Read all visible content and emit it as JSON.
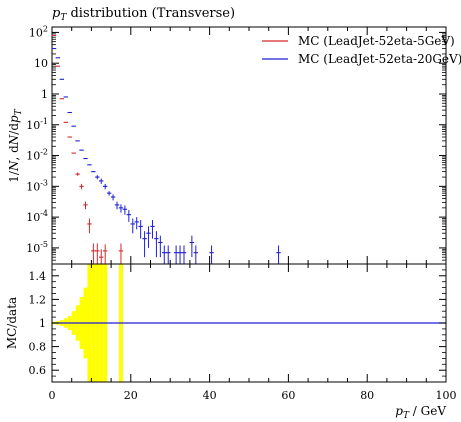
{
  "chart_data": [
    {
      "type": "scatter",
      "title": "p_T distribution (Transverse)",
      "ylabel": "1/N dN/dp_T",
      "xlim": [
        0,
        100
      ],
      "ylim": [
        3e-06,
        150
      ],
      "yscale": "log",
      "ytick_labels": [
        "10^{-5}",
        "10^{-4}",
        "10^{-3}",
        "10^{-2}",
        "10^{-1}",
        "1",
        "10",
        "10^{2}"
      ],
      "legend_position": "top-right",
      "series": [
        {
          "name": "MC (LeadJet-52eta-5GeV)",
          "color": "#d62728",
          "points": [
            {
              "x": 0.5,
              "y": 80,
              "err": 0
            },
            {
              "x": 1.5,
              "y": 8,
              "err": 0
            },
            {
              "x": 2.5,
              "y": 0.7,
              "err": 0
            },
            {
              "x": 3.5,
              "y": 0.12,
              "err": 0
            },
            {
              "x": 4.5,
              "y": 0.04,
              "err": 0
            },
            {
              "x": 5.5,
              "y": 0.012,
              "err": 0
            },
            {
              "x": 6.5,
              "y": 0.0025,
              "err": 0.0003
            },
            {
              "x": 7.5,
              "y": 0.001,
              "err": 0.0002
            },
            {
              "x": 8.5,
              "y": 0.00025,
              "err": 7e-05
            },
            {
              "x": 9.5,
              "y": 6e-05,
              "err": 3e-05
            },
            {
              "x": 10.5,
              "y": 8e-06,
              "err": 6e-06
            },
            {
              "x": 11.5,
              "y": 8e-06,
              "err": 6e-06
            },
            {
              "x": 12.5,
              "y": 5e-06,
              "err": 4e-06
            },
            {
              "x": 13.5,
              "y": 8e-06,
              "err": 5e-06
            },
            {
              "x": 17.5,
              "y": 8e-06,
              "err": 6e-06
            }
          ]
        },
        {
          "name": "MC (LeadJet-52eta-20GeV)",
          "color": "#1f1fd6",
          "points": [
            {
              "x": 0.5,
              "y": 30,
              "err": 0
            },
            {
              "x": 1.5,
              "y": 15,
              "err": 0
            },
            {
              "x": 2.5,
              "y": 3,
              "err": 0
            },
            {
              "x": 3.5,
              "y": 0.8,
              "err": 0
            },
            {
              "x": 4.5,
              "y": 0.25,
              "err": 0
            },
            {
              "x": 5.5,
              "y": 0.09,
              "err": 0
            },
            {
              "x": 6.5,
              "y": 0.03,
              "err": 0
            },
            {
              "x": 7.5,
              "y": 0.015,
              "err": 0
            },
            {
              "x": 8.5,
              "y": 0.008,
              "err": 0
            },
            {
              "x": 9.5,
              "y": 0.005,
              "err": 0
            },
            {
              "x": 10.5,
              "y": 0.003,
              "err": 0
            },
            {
              "x": 11.5,
              "y": 0.002,
              "err": 0.0003
            },
            {
              "x": 12.5,
              "y": 0.0015,
              "err": 0.0003
            },
            {
              "x": 13.5,
              "y": 0.001,
              "err": 0.0002
            },
            {
              "x": 14.5,
              "y": 0.0006,
              "err": 0.0001
            },
            {
              "x": 15.5,
              "y": 0.00045,
              "err": 0.0001
            },
            {
              "x": 16.5,
              "y": 0.00025,
              "err": 7e-05
            },
            {
              "x": 17.5,
              "y": 0.0002,
              "err": 6e-05
            },
            {
              "x": 18.5,
              "y": 0.00018,
              "err": 6e-05
            },
            {
              "x": 19.5,
              "y": 0.00012,
              "err": 5e-05
            },
            {
              "x": 20.5,
              "y": 6e-05,
              "err": 3e-05
            },
            {
              "x": 21.5,
              "y": 7e-05,
              "err": 3e-05
            },
            {
              "x": 22.5,
              "y": 5e-05,
              "err": 3e-05
            },
            {
              "x": 23.5,
              "y": 2e-05,
              "err": 1.5e-05
            },
            {
              "x": 24.5,
              "y": 3e-05,
              "err": 2e-05
            },
            {
              "x": 25.5,
              "y": 5e-05,
              "err": 3e-05
            },
            {
              "x": 26.5,
              "y": 2e-05,
              "err": 1.5e-05
            },
            {
              "x": 27.5,
              "y": 1.5e-05,
              "err": 1e-05
            },
            {
              "x": 28.5,
              "y": 7e-06,
              "err": 5e-06
            },
            {
              "x": 29.5,
              "y": 7e-06,
              "err": 5e-06
            },
            {
              "x": 31.5,
              "y": 7e-06,
              "err": 5e-06
            },
            {
              "x": 32.5,
              "y": 7e-06,
              "err": 5e-06
            },
            {
              "x": 33.5,
              "y": 7e-06,
              "err": 5e-06
            },
            {
              "x": 35.5,
              "y": 1.5e-05,
              "err": 1e-05
            },
            {
              "x": 36.5,
              "y": 7e-06,
              "err": 5e-06
            },
            {
              "x": 40.5,
              "y": 7e-06,
              "err": 5e-06
            },
            {
              "x": 57.5,
              "y": 7e-06,
              "err": 5e-06
            }
          ]
        }
      ]
    },
    {
      "type": "area",
      "ylabel": "MC/data",
      "xlabel": "p_T / GeV",
      "xlim": [
        0,
        100
      ],
      "ylim": [
        0.5,
        1.5
      ],
      "xticks": [
        0,
        20,
        40,
        60,
        80,
        100
      ],
      "yticks": [
        0.6,
        0.8,
        1,
        1.2,
        1.4
      ],
      "reference_line": 1,
      "reference_color": "#1f1fd6",
      "band_color": "#ffff00",
      "band": [
        {
          "x0": 0,
          "x1": 1,
          "lo": 0.99,
          "hi": 1.01
        },
        {
          "x0": 1,
          "x1": 2,
          "lo": 0.985,
          "hi": 1.015
        },
        {
          "x0": 2,
          "x1": 3,
          "lo": 0.975,
          "hi": 1.025
        },
        {
          "x0": 3,
          "x1": 4,
          "lo": 0.96,
          "hi": 1.04
        },
        {
          "x0": 4,
          "x1": 5,
          "lo": 0.94,
          "hi": 1.06
        },
        {
          "x0": 5,
          "x1": 6,
          "lo": 0.9,
          "hi": 1.1
        },
        {
          "x0": 6,
          "x1": 7,
          "lo": 0.85,
          "hi": 1.15
        },
        {
          "x0": 7,
          "x1": 8,
          "lo": 0.78,
          "hi": 1.22
        },
        {
          "x0": 8,
          "x1": 9,
          "lo": 0.7,
          "hi": 1.3
        },
        {
          "x0": 9,
          "x1": 10,
          "lo": 0.5,
          "hi": 1.5
        },
        {
          "x0": 10,
          "x1": 11,
          "lo": 0.5,
          "hi": 1.5
        },
        {
          "x0": 11,
          "x1": 12,
          "lo": 0.5,
          "hi": 1.5
        },
        {
          "x0": 12,
          "x1": 13,
          "lo": 0.5,
          "hi": 1.5
        },
        {
          "x0": 13,
          "x1": 14,
          "lo": 0.5,
          "hi": 1.5
        },
        {
          "x0": 17,
          "x1": 18,
          "lo": 0.5,
          "hi": 1.5
        }
      ]
    }
  ]
}
